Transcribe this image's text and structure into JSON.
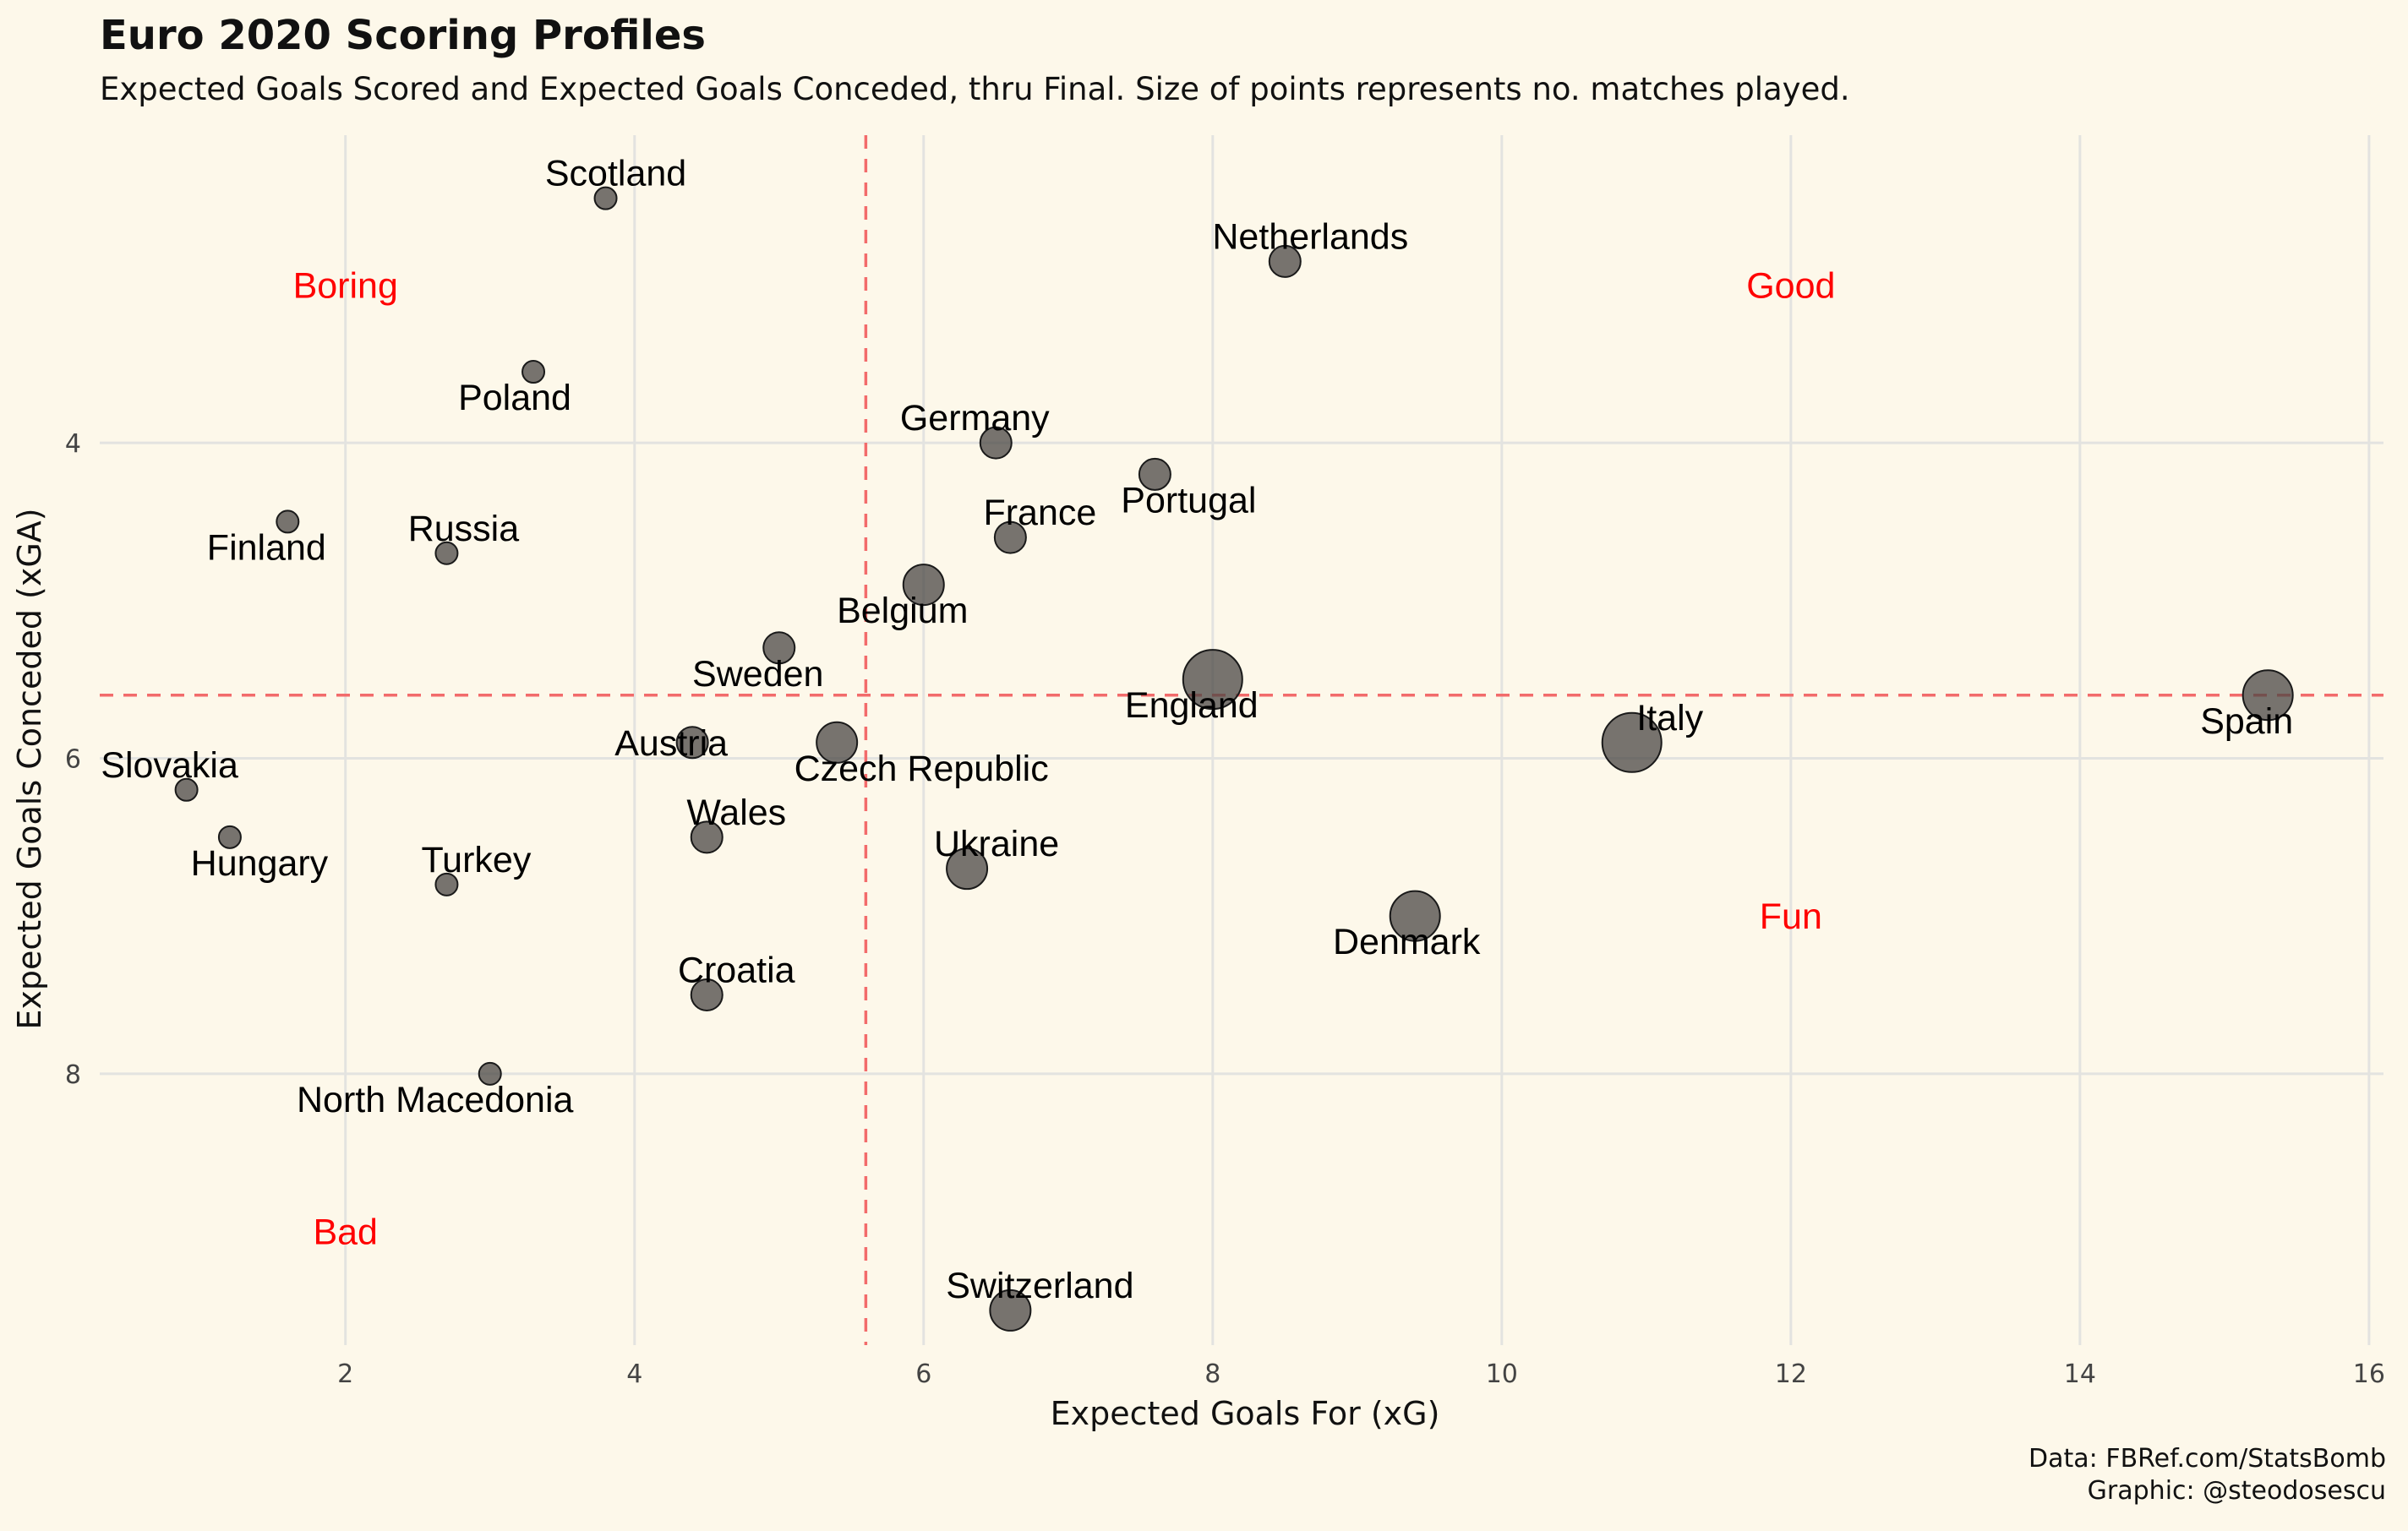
{
  "chart_data": {
    "type": "scatter",
    "title": "Euro 2020 Scoring Profiles",
    "subtitle": "Expected Goals Scored and Expected Goals Conceded, thru Final. Size of points represents no. matches played.",
    "xlabel": "Expected Goals For (xG)",
    "ylabel": "Expected Goals Conceded (xGA)",
    "xlim": [
      0.3,
      16.1
    ],
    "ylim": [
      2.05,
      9.72
    ],
    "y_reversed": true,
    "x_ticks": [
      2,
      4,
      6,
      8,
      10,
      12,
      14,
      16
    ],
    "y_ticks": [
      4,
      6,
      8
    ],
    "grid": true,
    "reference_lines": {
      "x": 5.6,
      "y": 5.6,
      "color": "#f26b6b"
    },
    "point_color": "#4a4744",
    "quadrant_labels": [
      {
        "text": "Boring",
        "x": 2,
        "y": 3
      },
      {
        "text": "Good",
        "x": 12,
        "y": 3
      },
      {
        "text": "Fun",
        "x": 12,
        "y": 7
      },
      {
        "text": "Bad",
        "x": 2,
        "y": 9
      }
    ],
    "points": [
      {
        "team": "Scotland",
        "xg": 3.8,
        "xga": 2.45,
        "matches": 3,
        "label_dx": 12,
        "label_dy": -15
      },
      {
        "team": "Netherlands",
        "xg": 8.5,
        "xga": 2.85,
        "matches": 4,
        "label_dx": 30,
        "label_dy": -15
      },
      {
        "team": "Poland",
        "xg": 3.3,
        "xga": 3.55,
        "matches": 3,
        "label_dx": -22,
        "label_dy": 45
      },
      {
        "team": "Germany",
        "xg": 6.5,
        "xga": 4.0,
        "matches": 4,
        "label_dx": -25,
        "label_dy": -15
      },
      {
        "team": "Portugal",
        "xg": 7.6,
        "xga": 4.2,
        "matches": 4,
        "label_dx": 40,
        "label_dy": 45
      },
      {
        "team": "Finland",
        "xg": 1.6,
        "xga": 4.5,
        "matches": 3,
        "label_dx": -25,
        "label_dy": 45
      },
      {
        "team": "Russia",
        "xg": 2.7,
        "xga": 4.7,
        "matches": 3,
        "label_dx": 20,
        "label_dy": -15
      },
      {
        "team": "France",
        "xg": 6.6,
        "xga": 4.6,
        "matches": 4,
        "label_dx": 35,
        "label_dy": -15
      },
      {
        "team": "Belgium",
        "xg": 6.0,
        "xga": 4.9,
        "matches": 5,
        "label_dx": -25,
        "label_dy": 45
      },
      {
        "team": "Sweden",
        "xg": 5.0,
        "xga": 5.3,
        "matches": 4,
        "label_dx": -25,
        "label_dy": 45
      },
      {
        "team": "England",
        "xg": 8.0,
        "xga": 5.5,
        "matches": 7,
        "label_dx": -25,
        "label_dy": 45
      },
      {
        "team": "Spain",
        "xg": 15.3,
        "xga": 5.6,
        "matches": 6,
        "label_dx": -25,
        "label_dy": 45
      },
      {
        "team": "Austria",
        "xg": 4.4,
        "xga": 5.9,
        "matches": 4,
        "label_dx": -25,
        "label_dy": 15
      },
      {
        "team": "Czech Republic",
        "xg": 5.4,
        "xga": 5.9,
        "matches": 5,
        "label_dx": 100,
        "label_dy": 45
      },
      {
        "team": "Italy",
        "xg": 10.9,
        "xga": 5.9,
        "matches": 7,
        "label_dx": 45,
        "label_dy": -15
      },
      {
        "team": "Slovakia",
        "xg": 0.9,
        "xga": 6.2,
        "matches": 3,
        "label_dx": -20,
        "label_dy": -15
      },
      {
        "team": "Hungary",
        "xg": 1.2,
        "xga": 6.5,
        "matches": 3,
        "label_dx": 35,
        "label_dy": 45
      },
      {
        "team": "Wales",
        "xg": 4.5,
        "xga": 6.5,
        "matches": 4,
        "label_dx": 35,
        "label_dy": -15
      },
      {
        "team": "Ukraine",
        "xg": 6.3,
        "xga": 6.7,
        "matches": 5,
        "label_dx": 35,
        "label_dy": -15
      },
      {
        "team": "Turkey",
        "xg": 2.7,
        "xga": 6.8,
        "matches": 3,
        "label_dx": 35,
        "label_dy": -15
      },
      {
        "team": "Denmark",
        "xg": 9.4,
        "xga": 7.0,
        "matches": 6,
        "label_dx": -10,
        "label_dy": 45
      },
      {
        "team": "Croatia",
        "xg": 4.5,
        "xga": 7.5,
        "matches": 4,
        "label_dx": 35,
        "label_dy": -15
      },
      {
        "team": "North Macedonia",
        "xg": 3.0,
        "xga": 8.0,
        "matches": 3,
        "label_dx": -65,
        "label_dy": 45
      },
      {
        "team": "Switzerland",
        "xg": 6.6,
        "xga": 9.5,
        "matches": 5,
        "label_dx": 35,
        "label_dy": -15
      }
    ]
  },
  "caption": {
    "line1": "Data: FBRef.com/StatsBomb",
    "line2": "Graphic: @steodosescu"
  }
}
